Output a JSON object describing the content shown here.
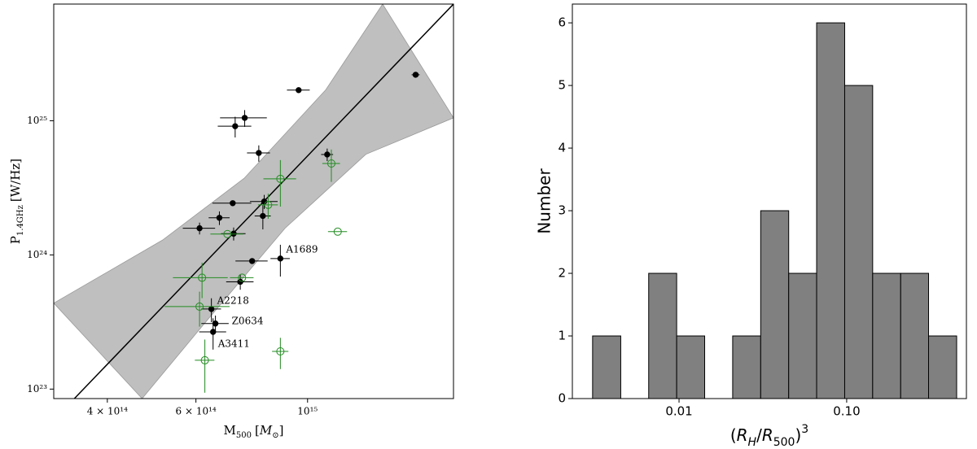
{
  "chart_data": [
    {
      "type": "scatter",
      "xlabel": [
        "M",
        "500",
        "[",
        "M",
        "⊙",
        "]"
      ],
      "ylabel": [
        "P",
        "1.4GHz",
        "[W/Hz]"
      ],
      "xscale": "log",
      "yscale": "log",
      "xlim": [
        313000000000000.0,
        1950000000000000.0
      ],
      "ylim": [
        8.5e+22,
        7.4e+25
      ],
      "xticks": [
        {
          "value": 400000000000000.0,
          "label": "4 × 10¹⁴"
        },
        {
          "value": 600000000000000.0,
          "label": "6 × 10¹⁴"
        },
        {
          "value": 1000000000000000.0,
          "label": "10¹⁵"
        }
      ],
      "yticks": [
        {
          "value": 1e+23,
          "label": "10²³"
        },
        {
          "value": 1e+24,
          "label": "10²⁴"
        },
        {
          "value": 1e+25,
          "label": "10²⁵"
        }
      ],
      "band": {
        "color": "#bfbfbf",
        "upper": {
          "x": [
            313000000000000.0,
            515000000000000.0,
            748000000000000.0,
            1087000000000000.0,
            1410000000000000.0
          ],
          "y": [
            4.37e+23,
            1.29e+24,
            3.72e+24,
            1.7e+25,
            7.4e+25
          ]
        },
        "lower": {
          "x": [
            469000000000000.0,
            621000000000000.0,
            902000000000000.0,
            1306000000000000.0,
            1950000000000000.0
          ],
          "y": [
            8.5e+22,
            3.02e+23,
            1.58e+24,
            5.62e+24,
            1.05e+25
          ]
        }
      },
      "fit": {
        "color": "#000000",
        "x": [
          344000000000000.0,
          1950000000000000.0
        ],
        "y": [
          8.5e+22,
          7.4e+25
        ]
      },
      "series": [
        {
          "color": "#000000",
          "filled": true,
          "x": [
            1640000000000000.0,
            960000000000000.0,
            750000000000000.0,
            718000000000000.0,
            800000000000000.0,
            1094000000000000.0,
            820000000000000.0,
            710000000000000.0,
            815000000000000.0,
            668000000000000.0,
            610000000000000.0,
            713000000000000.0,
            776000000000000.0,
            883000000000000.0,
            735000000000000.0,
            644000000000000.0,
            656000000000000.0,
            649000000000000.0
          ],
          "values": [
            2.2e+25,
            1.69e+25,
            1.05e+25,
            9.1e+24,
            5.75e+24,
            5.6e+24,
            2.5e+24,
            2.43e+24,
            1.95e+24,
            1.89e+24,
            1.58e+24,
            1.44e+24,
            9e+23,
            9.4e+23,
            6.3e+23,
            3.95e+23,
            3.08e+23,
            2.67e+23
          ],
          "xerr": [
            30000000000000.0,
            50000000000000.0,
            80000000000000.0,
            55000000000000.0,
            42000000000000.0,
            30000000000000.0,
            52000000000000.0,
            63000000000000.0,
            30000000000000.0,
            32000000000000.0,
            45000000000000.0,
            40000000000000.0,
            57000000000000.0,
            39000000000000.0,
            46000000000000.0,
            29000000000000.0,
            41000000000000.0,
            40000000000000.0
          ],
          "yerr": [
            0,
            0,
            1.5e+24,
            1.6e+24,
            8e+23,
            6e+23,
            3e+23,
            1e+23,
            4e+23,
            2.2e+23,
            1.6e+23,
            1.6e+23,
            0,
            2.5e+23,
            8e+22,
            8e+22,
            4.5e+22,
            7e+22
          ]
        },
        {
          "color": "#228b22",
          "filled": false,
          "x": [
            1115000000000000.0,
            883000000000000.0,
            835000000000000.0,
            1148000000000000.0,
            693000000000000.0,
            617000000000000.0,
            741000000000000.0,
            610000000000000.0,
            883000000000000.0,
            625000000000000.0
          ],
          "values": [
            4.8e+24,
            3.69e+24,
            2.36e+24,
            1.49e+24,
            1.43e+24,
            6.76e+23,
            6.76e+23,
            4.12e+23,
            1.91e+23,
            1.64e+23
          ],
          "xerr": [
            45000000000000.0,
            66000000000000.0,
            38000000000000.0,
            50000000000000.0,
            52000000000000.0,
            77000000000000.0,
            40000000000000.0,
            90000000000000.0,
            33000000000000.0,
            28000000000000.0
          ],
          "yerr": [
            1.3e+24,
            1.4e+24,
            5e+23,
            0,
            0,
            2e+23,
            0,
            1.2e+23,
            5e+22,
            7e+22
          ]
        }
      ],
      "annotations": [
        "A1689",
        "A2218",
        "Z0634",
        "A3411"
      ]
    },
    {
      "type": "histogram",
      "xlabel": [
        "(",
        "R",
        "H",
        "/",
        "R",
        "500",
        ")",
        "3"
      ],
      "ylabel": "Number",
      "xscale": "log",
      "xlim": [
        0.00231,
        0.518
      ],
      "ylim": [
        0,
        6.3
      ],
      "xticks": [
        0.01,
        {
          "value": 0.1,
          "label": "0.10"
        }
      ],
      "yticks": [
        0,
        1,
        2,
        3,
        4,
        5,
        6
      ],
      "color": "#808080",
      "bins": [
        0.00305,
        0.00449,
        0.00659,
        0.00968,
        0.01422,
        0.02089,
        0.0307,
        0.0451,
        0.0662,
        0.0973,
        0.1429,
        0.21,
        0.308,
        0.453
      ],
      "counts": [
        1,
        0,
        2,
        1,
        0,
        1,
        3,
        2,
        6,
        5,
        2,
        2,
        1
      ]
    }
  ]
}
